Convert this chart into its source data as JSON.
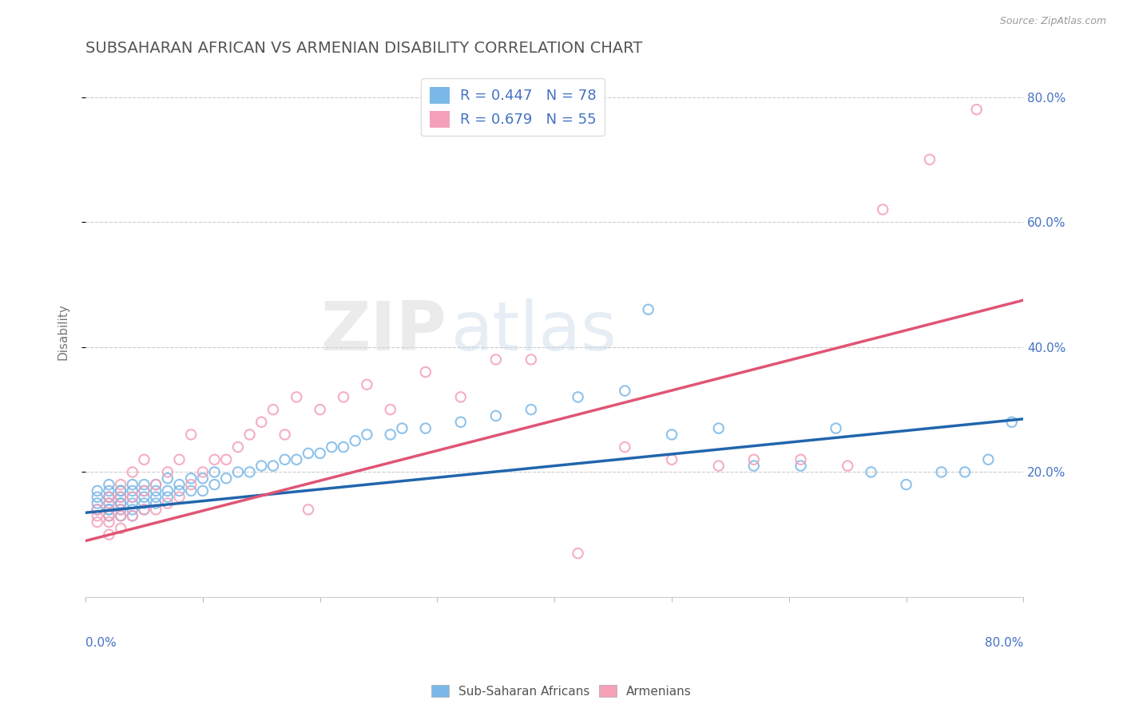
{
  "title": "SUBSAHARAN AFRICAN VS ARMENIAN DISABILITY CORRELATION CHART",
  "source": "Source: ZipAtlas.com",
  "ylabel": "Disability",
  "right_ytick_labels": [
    "20.0%",
    "40.0%",
    "60.0%",
    "80.0%"
  ],
  "right_ytick_values": [
    0.2,
    0.4,
    0.6,
    0.8
  ],
  "xlim": [
    0.0,
    0.8
  ],
  "ylim": [
    0.0,
    0.85
  ],
  "blue_R": 0.447,
  "blue_N": 78,
  "pink_R": 0.679,
  "pink_N": 55,
  "blue_color": "#7ab8e8",
  "pink_color": "#f4a0b8",
  "blue_line_color": "#2166ac",
  "pink_line_color": "#e05575",
  "legend_label_blue": "Sub-Saharan Africans",
  "legend_label_pink": "Armenians",
  "background_color": "#ffffff",
  "grid_color": "#cccccc",
  "title_color": "#555555",
  "watermark_zip": "ZIP",
  "watermark_atlas": "atlas",
  "blue_scatter_x": [
    0.01,
    0.01,
    0.01,
    0.01,
    0.02,
    0.02,
    0.02,
    0.02,
    0.02,
    0.02,
    0.02,
    0.02,
    0.03,
    0.03,
    0.03,
    0.03,
    0.03,
    0.03,
    0.03,
    0.04,
    0.04,
    0.04,
    0.04,
    0.04,
    0.04,
    0.05,
    0.05,
    0.05,
    0.05,
    0.05,
    0.06,
    0.06,
    0.06,
    0.06,
    0.07,
    0.07,
    0.07,
    0.08,
    0.08,
    0.09,
    0.09,
    0.1,
    0.1,
    0.11,
    0.11,
    0.12,
    0.13,
    0.14,
    0.15,
    0.16,
    0.17,
    0.18,
    0.19,
    0.2,
    0.21,
    0.22,
    0.23,
    0.24,
    0.26,
    0.27,
    0.29,
    0.32,
    0.35,
    0.38,
    0.42,
    0.46,
    0.5,
    0.54,
    0.57,
    0.61,
    0.64,
    0.67,
    0.7,
    0.73,
    0.75,
    0.77,
    0.79,
    0.48
  ],
  "blue_scatter_y": [
    0.14,
    0.15,
    0.16,
    0.17,
    0.13,
    0.14,
    0.15,
    0.16,
    0.17,
    0.18,
    0.14,
    0.16,
    0.14,
    0.15,
    0.16,
    0.17,
    0.13,
    0.15,
    0.17,
    0.14,
    0.15,
    0.16,
    0.17,
    0.13,
    0.18,
    0.15,
    0.16,
    0.17,
    0.14,
    0.18,
    0.15,
    0.16,
    0.17,
    0.18,
    0.16,
    0.17,
    0.19,
    0.17,
    0.18,
    0.17,
    0.19,
    0.17,
    0.19,
    0.18,
    0.2,
    0.19,
    0.2,
    0.2,
    0.21,
    0.21,
    0.22,
    0.22,
    0.23,
    0.23,
    0.24,
    0.24,
    0.25,
    0.26,
    0.26,
    0.27,
    0.27,
    0.28,
    0.29,
    0.3,
    0.32,
    0.33,
    0.26,
    0.27,
    0.21,
    0.21,
    0.27,
    0.2,
    0.18,
    0.2,
    0.2,
    0.22,
    0.28,
    0.46
  ],
  "pink_scatter_x": [
    0.01,
    0.01,
    0.01,
    0.02,
    0.02,
    0.02,
    0.02,
    0.02,
    0.03,
    0.03,
    0.03,
    0.03,
    0.03,
    0.04,
    0.04,
    0.04,
    0.05,
    0.05,
    0.05,
    0.06,
    0.06,
    0.07,
    0.07,
    0.08,
    0.08,
    0.09,
    0.09,
    0.1,
    0.11,
    0.12,
    0.13,
    0.14,
    0.15,
    0.16,
    0.17,
    0.18,
    0.19,
    0.2,
    0.22,
    0.24,
    0.26,
    0.29,
    0.32,
    0.35,
    0.38,
    0.42,
    0.46,
    0.5,
    0.54,
    0.57,
    0.61,
    0.65,
    0.68,
    0.72,
    0.76
  ],
  "pink_scatter_y": [
    0.12,
    0.13,
    0.14,
    0.1,
    0.12,
    0.13,
    0.15,
    0.16,
    0.11,
    0.13,
    0.14,
    0.16,
    0.18,
    0.13,
    0.16,
    0.2,
    0.14,
    0.17,
    0.22,
    0.14,
    0.18,
    0.15,
    0.2,
    0.16,
    0.22,
    0.18,
    0.26,
    0.2,
    0.22,
    0.22,
    0.24,
    0.26,
    0.28,
    0.3,
    0.26,
    0.32,
    0.14,
    0.3,
    0.32,
    0.34,
    0.3,
    0.36,
    0.32,
    0.38,
    0.38,
    0.07,
    0.24,
    0.22,
    0.21,
    0.22,
    0.22,
    0.21,
    0.62,
    0.7,
    0.78
  ]
}
